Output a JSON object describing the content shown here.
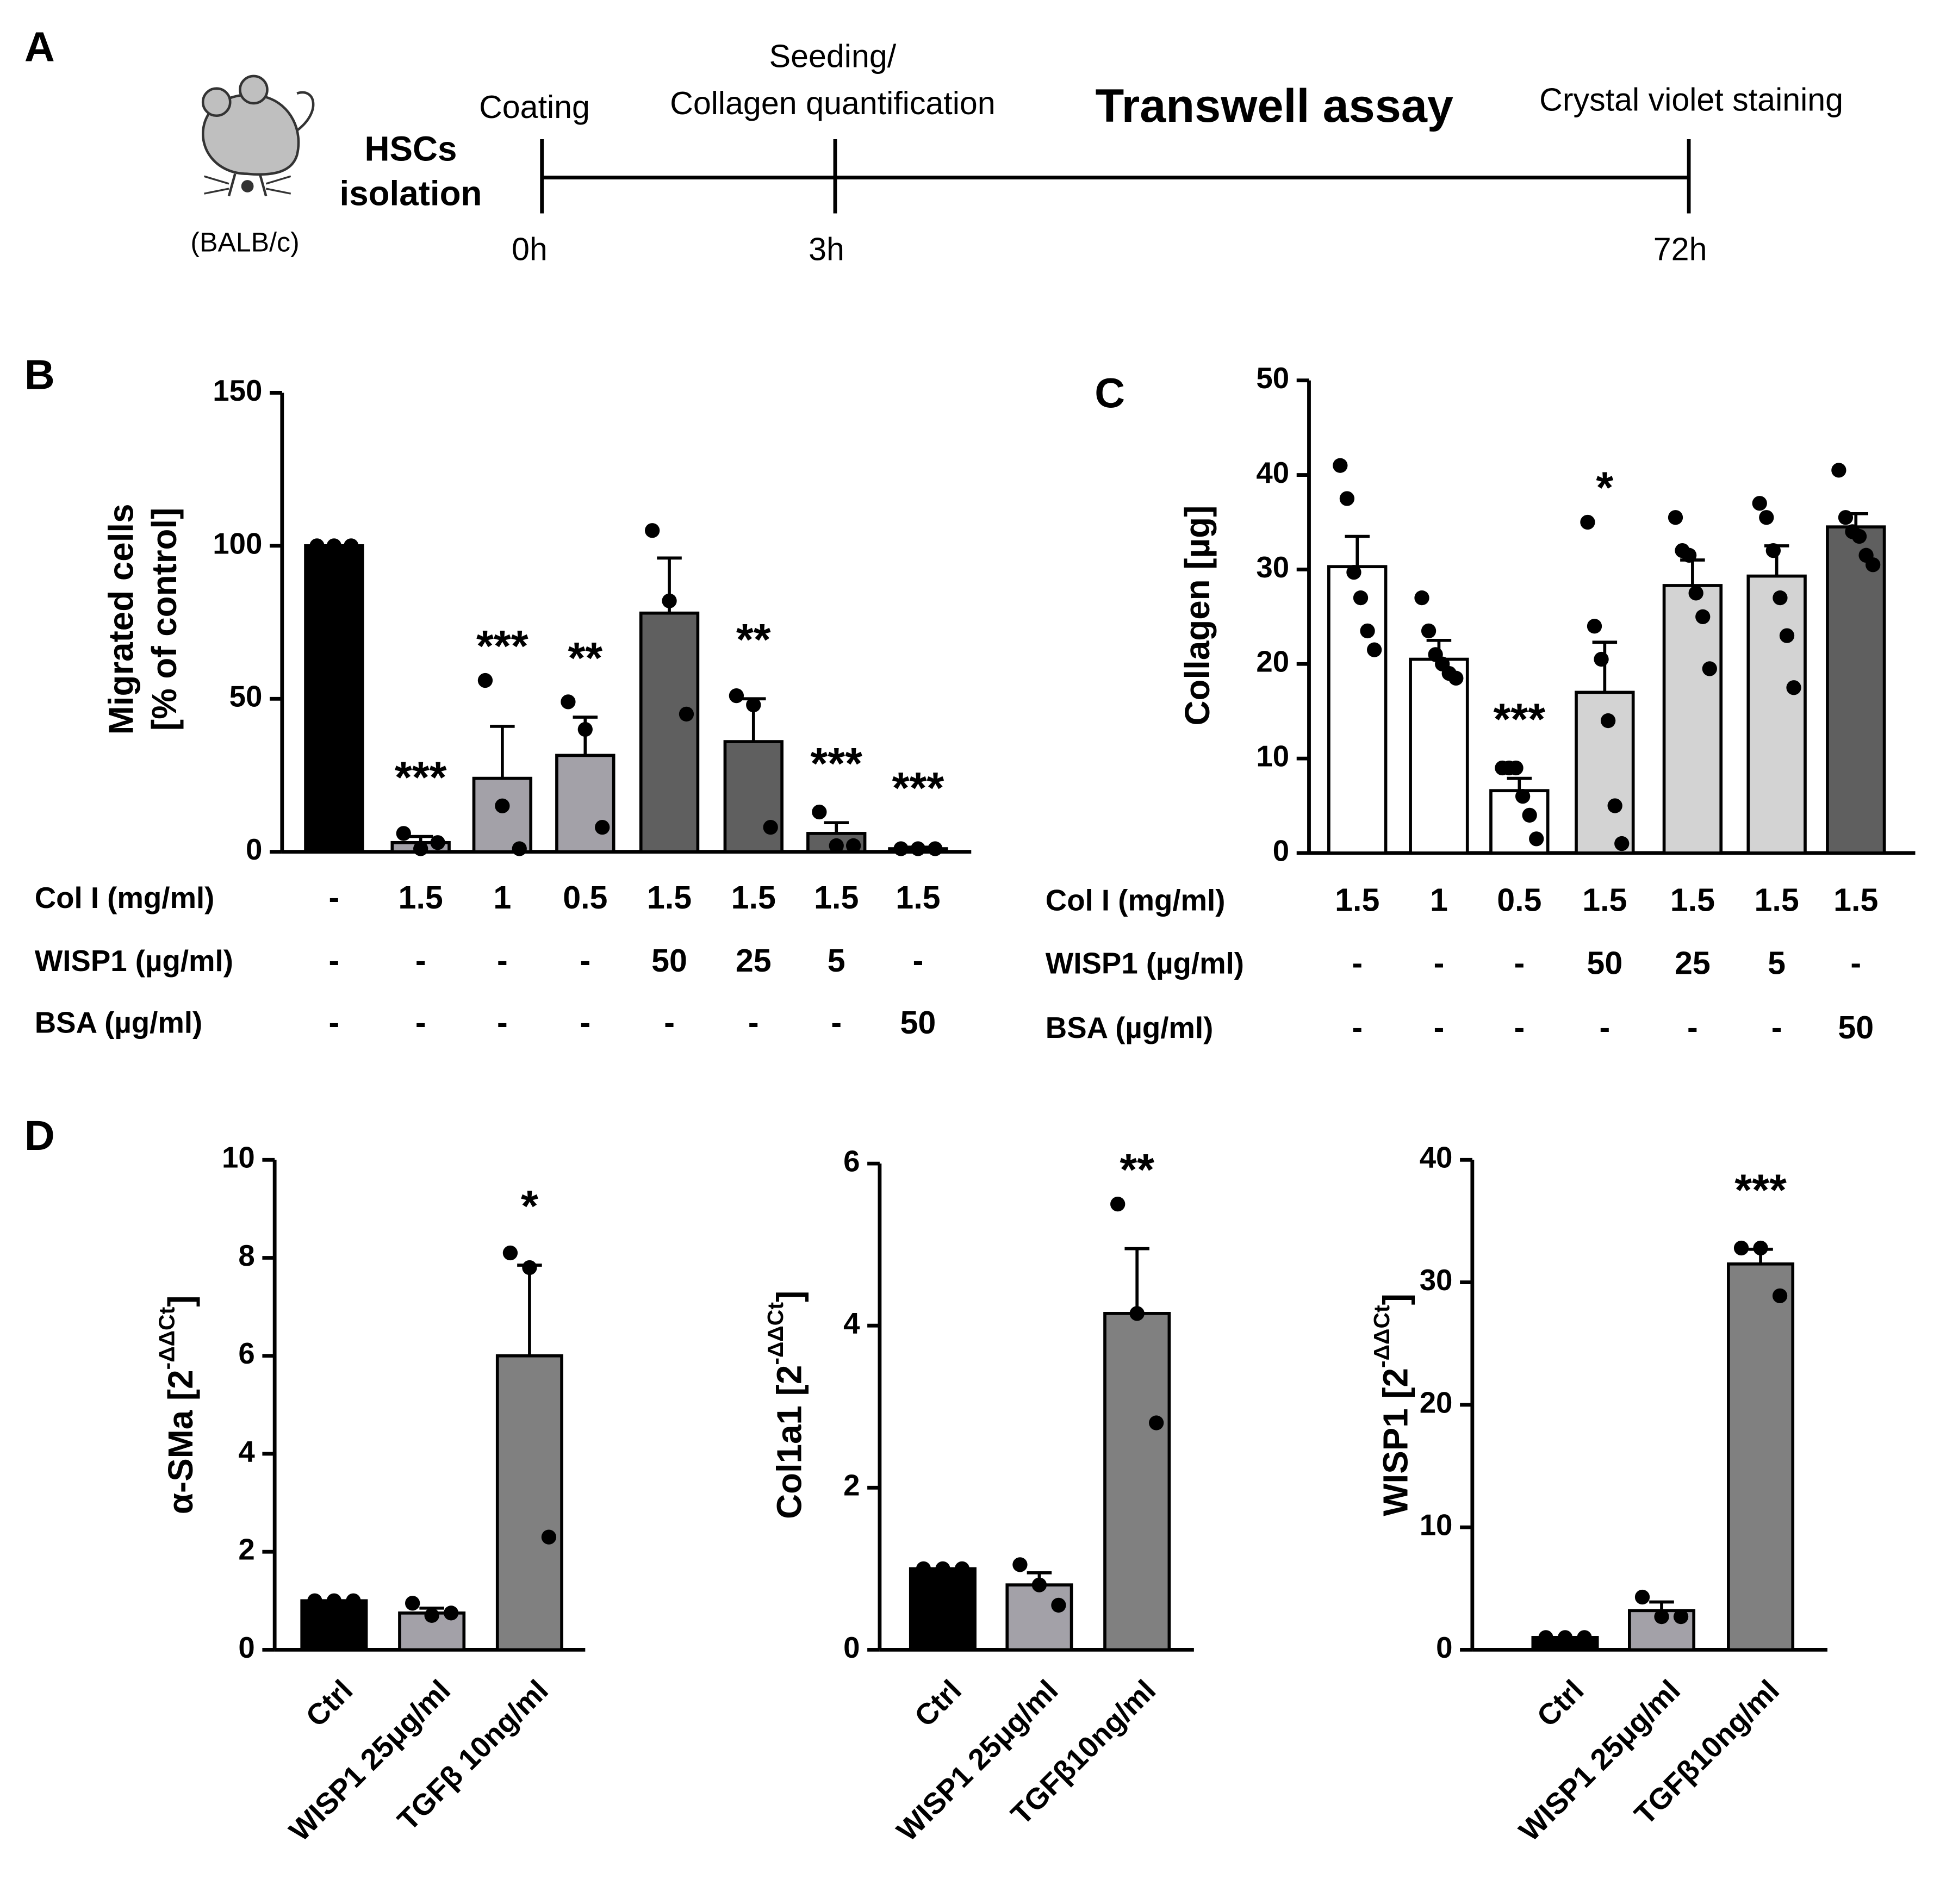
{
  "panels": [
    "A",
    "B",
    "C",
    "D"
  ],
  "timeline": {
    "title": "Transwell assay",
    "mouse_label": "(BALB/c)",
    "isolation": [
      "HSCs",
      "isolation"
    ],
    "events": [
      {
        "label": [
          "Coating"
        ],
        "time": "0h"
      },
      {
        "label": [
          "Seeding/",
          "Collagen quantification"
        ],
        "time": "3h"
      },
      {
        "label": [
          "Crystal violet staining"
        ],
        "time": "72h"
      }
    ]
  },
  "chart_data": [
    {
      "type": "bar",
      "ylabel": [
        "Migrated cells",
        "[% of control]"
      ],
      "ylim": [
        0,
        150
      ],
      "yticks": [
        0,
        50,
        100,
        150
      ],
      "conditions": [
        {
          "name": "Col I (mg/ml)",
          "values": [
            "-",
            "1.5",
            "1",
            "0.5",
            "1.5",
            "1.5",
            "1.5",
            "1.5"
          ]
        },
        {
          "name": "WISP1 (µg/ml)",
          "values": [
            "-",
            "-",
            "-",
            "-",
            "50",
            "25",
            "5",
            "-"
          ]
        },
        {
          "name": "BSA (µg/ml)",
          "values": [
            "-",
            "-",
            "-",
            "-",
            "-",
            "-",
            "-",
            "50"
          ]
        }
      ],
      "values": [
        100,
        3,
        24,
        31.5,
        78,
        36,
        6,
        1
      ],
      "errors": [
        0,
        2,
        17,
        12.5,
        18,
        14,
        3.5,
        0.5
      ],
      "points": [
        [
          100,
          100,
          100
        ],
        [
          6,
          1,
          3
        ],
        [
          56,
          15,
          1
        ],
        [
          49,
          40,
          8
        ],
        [
          105,
          82,
          45
        ],
        [
          51,
          48,
          8
        ],
        [
          13,
          2,
          2
        ],
        [
          1,
          1,
          1
        ]
      ],
      "annotations": [
        null,
        "***",
        "***",
        "**",
        null,
        "**",
        "***",
        "***"
      ],
      "colors": [
        "#000000",
        "#a3a1a8",
        "#a3a1a8",
        "#a3a1a8",
        "#5f5f5f",
        "#5f5f5f",
        "#5f5f5f",
        "#5f5f5f"
      ]
    },
    {
      "type": "bar",
      "ylabel": "Collagen [µg]",
      "ylim": [
        0,
        50
      ],
      "yticks": [
        0,
        10,
        20,
        30,
        40,
        50
      ],
      "conditions": [
        {
          "name": "Col I (mg/ml)",
          "values": [
            "1.5",
            "1",
            "0.5",
            "1.5",
            "1.5",
            "1.5",
            "1.5"
          ]
        },
        {
          "name": "WISP1 (µg/ml)",
          "values": [
            "-",
            "-",
            "-",
            "50",
            "25",
            "5",
            "-"
          ]
        },
        {
          "name": "BSA (µg/ml)",
          "values": [
            "-",
            "-",
            "-",
            "-",
            "-",
            "-",
            "50"
          ]
        }
      ],
      "values": [
        30.3,
        20.5,
        6.6,
        17,
        28.3,
        29.3,
        34.5
      ],
      "errors": [
        3.2,
        2,
        1.3,
        5.3,
        2.7,
        3.2,
        1.4
      ],
      "points": [
        [
          41,
          37.5,
          29.7,
          27,
          23.5,
          21.5
        ],
        [
          27,
          23.5,
          21,
          20,
          19,
          18.5
        ],
        [
          9,
          9,
          9,
          6,
          4,
          1.5
        ],
        [
          35,
          24,
          20.5,
          14,
          5,
          1
        ],
        [
          35.5,
          32,
          31.5,
          27.5,
          25,
          19.5
        ],
        [
          37,
          35.5,
          32,
          27,
          23,
          17.5
        ],
        [
          40.5,
          35.5,
          34,
          33.5,
          31.5,
          30.5
        ]
      ],
      "annotations": [
        null,
        null,
        "***",
        "*",
        null,
        null,
        null
      ],
      "colors": [
        "#ffffff",
        "#ffffff",
        "#ffffff",
        "#d3d3d3",
        "#d3d3d3",
        "#d3d3d3",
        "#5f5f5f"
      ]
    },
    {
      "type": "bar",
      "ylabel": "α-SMa [2",
      "ylabel_sup": "-ΔΔCt",
      "ylabel_end": "]",
      "ylim": [
        0,
        10
      ],
      "yticks": [
        0,
        2,
        4,
        6,
        8,
        10
      ],
      "categories": [
        "Ctrl",
        "WISP1 25μg/ml",
        "TGFβ 10ng/ml"
      ],
      "values": [
        1,
        0.75,
        6
      ],
      "errors": [
        0,
        0.1,
        1.85
      ],
      "points": [
        [
          1,
          1,
          1
        ],
        [
          0.95,
          0.7,
          0.75
        ],
        [
          8.1,
          7.8,
          2.3
        ]
      ],
      "annotations": [
        null,
        null,
        "*"
      ],
      "colors": [
        "#000000",
        "#a3a1a8",
        "#808080"
      ]
    },
    {
      "type": "bar",
      "ylabel": "Col1a1 [2",
      "ylabel_sup": "-ΔΔCt",
      "ylabel_end": "]",
      "ylim": [
        0,
        6
      ],
      "yticks": [
        0,
        2,
        4,
        6
      ],
      "categories": [
        "Ctrl",
        "WISP1 25μg/ml",
        "TGFβ10ng/ml"
      ],
      "values": [
        1,
        0.8,
        4.15
      ],
      "errors": [
        0,
        0.15,
        0.8
      ],
      "points": [
        [
          1,
          1,
          1
        ],
        [
          1.05,
          0.8,
          0.55
        ],
        [
          5.5,
          4.15,
          2.8
        ]
      ],
      "annotations": [
        null,
        null,
        "**"
      ],
      "colors": [
        "#000000",
        "#a3a1a8",
        "#808080"
      ]
    },
    {
      "type": "bar",
      "ylabel": "WISP1 [2",
      "ylabel_sup": "-ΔΔCt",
      "ylabel_end": "]",
      "ylim": [
        0,
        40
      ],
      "yticks": [
        0,
        10,
        20,
        30,
        40
      ],
      "categories": [
        "Ctrl",
        "WISP1 25μg/ml",
        "TGFβ10ng/ml"
      ],
      "values": [
        1,
        3.2,
        31.5
      ],
      "errors": [
        0,
        0.7,
        1.2
      ],
      "points": [
        [
          1,
          1,
          1
        ],
        [
          4.3,
          2.7,
          2.7
        ],
        [
          32.8,
          32.8,
          28.9
        ]
      ],
      "annotations": [
        null,
        null,
        "***"
      ],
      "colors": [
        "#000000",
        "#a3a1a8",
        "#808080"
      ]
    }
  ]
}
